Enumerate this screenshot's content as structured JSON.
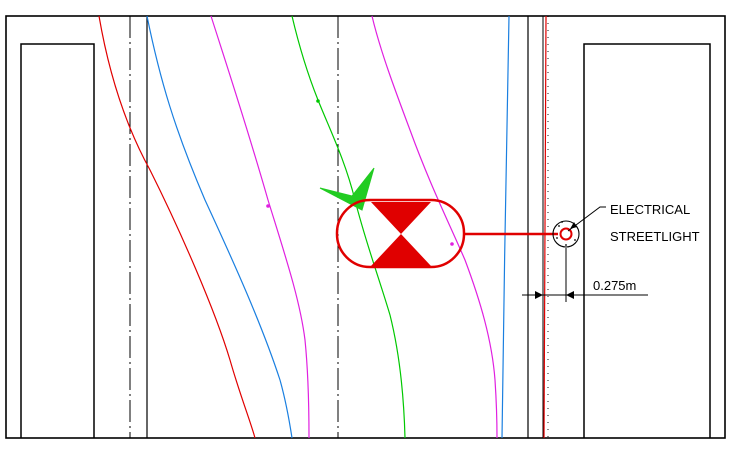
{
  "annotations": {
    "feature_label_line1": "ELECTRICAL",
    "feature_label_line2": "STREETLIGHT",
    "offset_dimension": "0.275m"
  },
  "colors": {
    "frame": "#000000",
    "centerline": "#000000",
    "red_curve": "#e00000",
    "blue_curve": "#1a7fe0",
    "magenta_curve": "#e020e0",
    "green_curve": "#00c800",
    "symbol_fill": "#e00000",
    "north_arrow": "#22cc22"
  }
}
